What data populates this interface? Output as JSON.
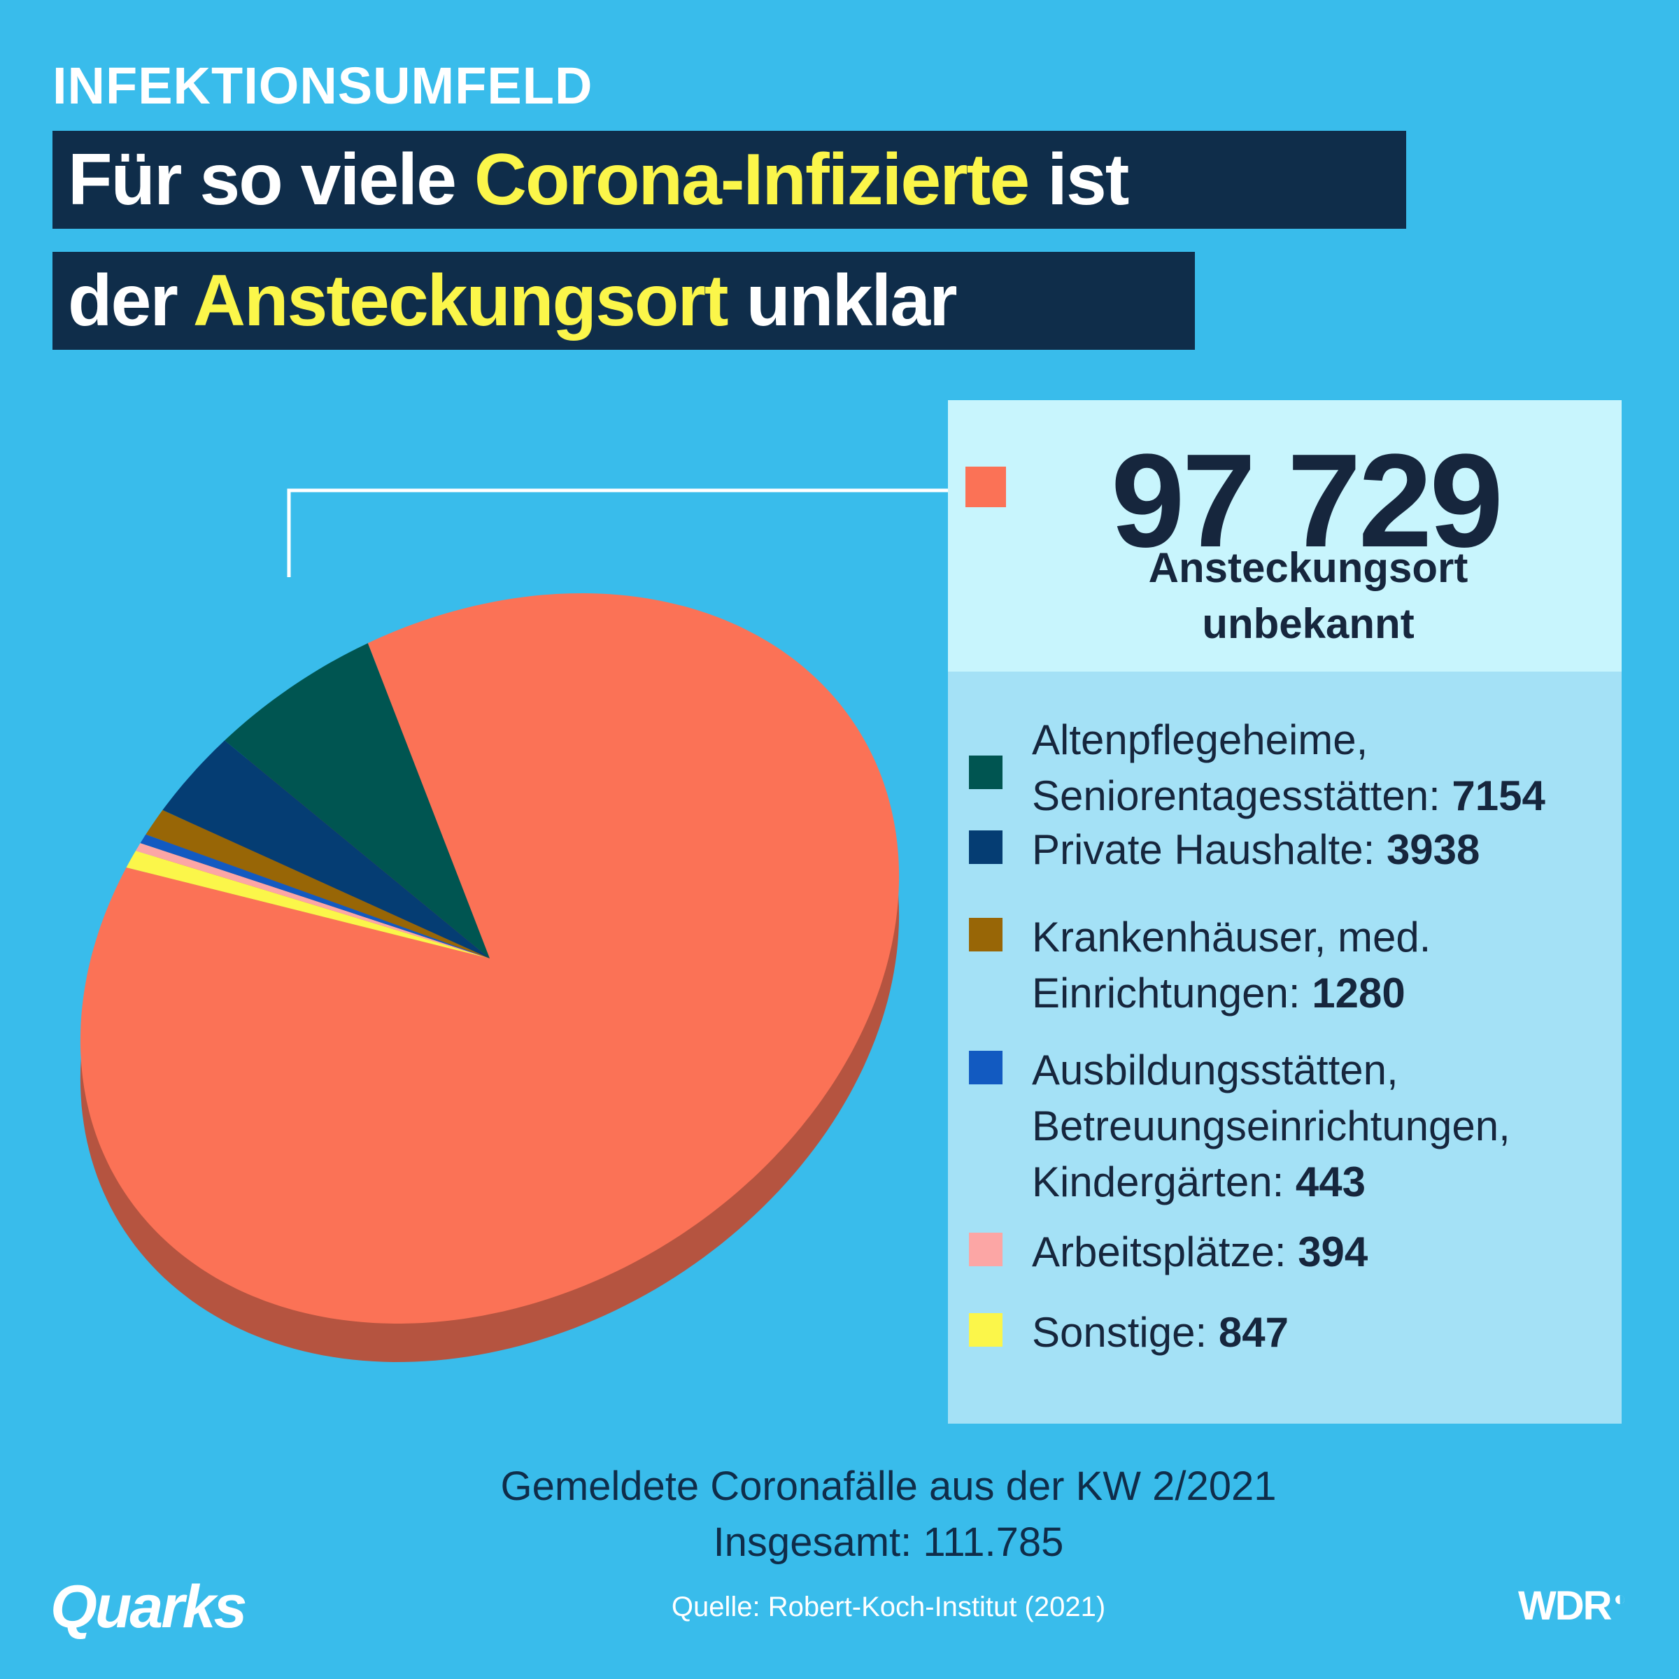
{
  "header": {
    "kicker": "INFEKTIONSUMFELD",
    "line1_pre": "Für so viele ",
    "line1_hl": "Corona-Infizierte",
    "line1_post": " ist",
    "line2_pre": "der ",
    "line2_hl": "Ansteckungsort",
    "line2_post": " unklar"
  },
  "colors": {
    "background": "#39bceb",
    "title_bar": "#0f2d4a",
    "highlight": "#fbf64a"
  },
  "chart_data": {
    "type": "pie",
    "title": "Für so viele Corona-Infizierte ist der Ansteckungsort unklar",
    "total_label": "Insgesamt: 111.785",
    "slices": [
      {
        "key": "unknown",
        "label": "Ansteckungsort unbekannt",
        "value": 97729,
        "color": "#fb7256",
        "side": "#b55440"
      },
      {
        "key": "alten",
        "label": "Altenpflegeheime, Seniorentagesstätten",
        "value": 7154,
        "color": "#005551",
        "side": "#003b38"
      },
      {
        "key": "privat",
        "label": "Private Haushalte",
        "value": 3938,
        "color": "#053d73",
        "side": "#032a50"
      },
      {
        "key": "kranken",
        "label": "Krankenhäuser, med. Einrichtungen",
        "value": 1280,
        "color": "#986606",
        "side": "#6a4704"
      },
      {
        "key": "ausbildung",
        "label": "Ausbildungsstätten, Betreuungseinrichtungen, Kindergärten",
        "value": 443,
        "color": "#125ac1",
        "side": "#0c3f87"
      },
      {
        "key": "arbeit",
        "label": "Arbeitsplätze",
        "value": 394,
        "color": "#fca6a5",
        "side": "#b07473"
      },
      {
        "key": "sonstige",
        "label": "Sonstige",
        "value": 847,
        "color": "#fbf64a",
        "side": "#b0ac34"
      }
    ]
  },
  "callout": {
    "number": "97 729",
    "label_l1": "Ansteckungsort",
    "label_l2": "unbekannt"
  },
  "legend": [
    {
      "text_l1": "Altenpflegeheime,",
      "text_l2": "Seniorentagesstätten: ",
      "value": "7154"
    },
    {
      "text_l1": "Private Haushalte: ",
      "value": "3938"
    },
    {
      "text_l1": "Krankenhäuser, med.",
      "text_l2": "Einrichtungen: ",
      "value": "1280"
    },
    {
      "text_l1": "Ausbildungsstätten,",
      "text_l2": "Betreuungseinrichtungen,",
      "text_l3": "Kindergärten: ",
      "value": "443"
    },
    {
      "text_l1": "Arbeitsplätze: ",
      "value": "394"
    },
    {
      "text_l1": "Sonstige: ",
      "value": "847"
    }
  ],
  "footer": {
    "line1": "Gemeldete Coronafälle aus der KW 2/2021",
    "line2": "Insgesamt: 111.785",
    "source": "Quelle: Robert-Koch-Institut (2021)",
    "brand_left": "Quarks",
    "brand_right": "WDR"
  }
}
